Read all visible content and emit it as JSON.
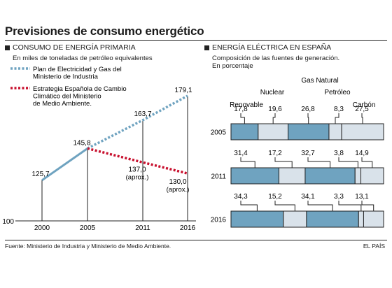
{
  "title": "Previsiones de consumo energético",
  "footer": {
    "source": "Fuente: Ministerio de Industria y Ministerio de Medio Ambiente.",
    "credit": "EL PAÍS"
  },
  "chart_data": [
    {
      "type": "line",
      "title": "CONSUMO DE ENERGÍA PRIMARIA",
      "subtitle": "En miles de toneladas de petróleo equivalentes",
      "categories": [
        "2000",
        "2005",
        "2011",
        "2016"
      ],
      "ylim": [
        100,
        180
      ],
      "y_tick_label": "100",
      "color_history": "#6fa3c0",
      "color_plan": "#6fa3c0",
      "color_strategy": "#c8102e",
      "history": {
        "x": [
          2000,
          2005
        ],
        "values": [
          125.7,
          145.8
        ],
        "labels": [
          "125,7",
          "145,8"
        ]
      },
      "series": [
        {
          "name": "Plan de Electricidad y Gas del Ministerio de Industria",
          "legend_lines": [
            "Plan de Electricidad y Gas del",
            "Ministerio de Industria"
          ],
          "x": [
            2005,
            2011,
            2016
          ],
          "values": [
            145.8,
            163.7,
            179.1
          ],
          "labels": [
            "",
            "163,7",
            "179,1"
          ]
        },
        {
          "name": "Estrategia Española de Cambio Climático del Ministerio de Medio Ambiente",
          "legend_lines": [
            "Estrategia Española de Cambio",
            "Climático del Ministerio",
            "de Medio Ambiente."
          ],
          "x": [
            2005,
            2011,
            2016
          ],
          "values": [
            145.8,
            137.0,
            130.0
          ],
          "labels": [
            "",
            "137,0",
            "130,0"
          ],
          "notes": [
            "",
            "(aprox.)",
            "(aprox.)"
          ]
        }
      ]
    },
    {
      "type": "bar",
      "title": "ENERGÍA ELÉCTRICA EN ESPAÑA",
      "subtitle_lines": [
        "Composición de las fuentes de generación.",
        "En porcentaje"
      ],
      "orientation": "horizontal",
      "stacked": true,
      "colors": {
        "blue": "#6fa3c0",
        "light": "#d9e2ea"
      },
      "categories": [
        "Renovable",
        "Nuclear",
        "Gas Natural",
        "Petróleo",
        "Carbón"
      ],
      "rows": [
        {
          "label": "2005",
          "values": [
            17.8,
            19.6,
            26.8,
            8.3,
            27.5
          ],
          "labels": [
            "17,8",
            "19,6",
            "26,8",
            "8,3",
            "27,5"
          ]
        },
        {
          "label": "2011",
          "values": [
            31.4,
            17.2,
            32.7,
            3.8,
            14.9
          ],
          "labels": [
            "31,4",
            "17,2",
            "32,7",
            "3,8",
            "14,9"
          ]
        },
        {
          "label": "2016",
          "values": [
            34.3,
            15.2,
            34.1,
            3.3,
            13.1
          ],
          "labels": [
            "34,3",
            "15,2",
            "34,1",
            "3,3",
            "13,1"
          ]
        }
      ]
    }
  ]
}
